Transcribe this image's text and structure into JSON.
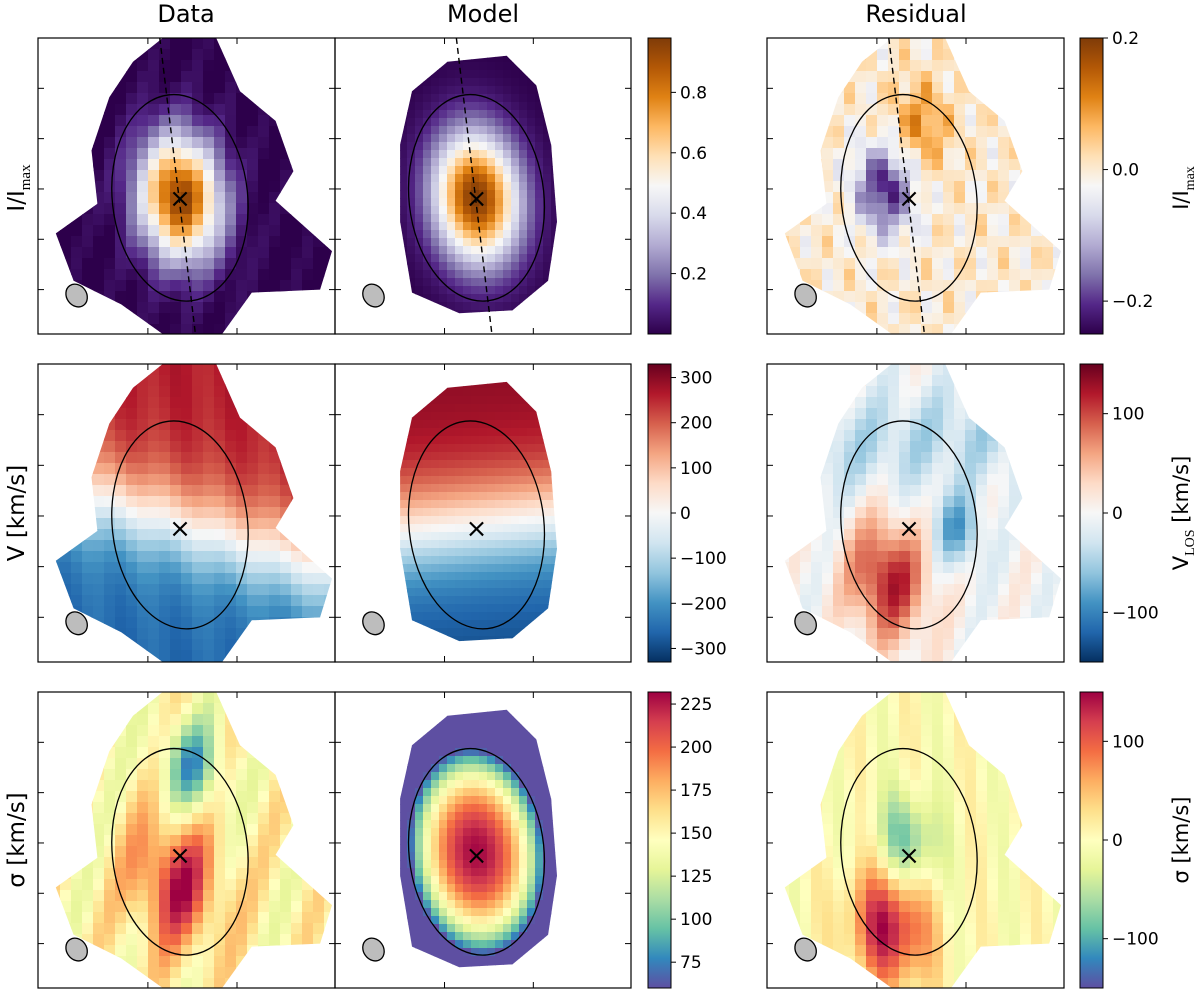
{
  "chart_data": {
    "type": "heatmap",
    "figure_kind": "3x3 map grid (Data / Model / Residual) with colorbars",
    "columns": [
      "Data",
      "Model",
      "Residual"
    ],
    "rows": [
      {
        "id": "intensity",
        "ylabel_main": "I/I",
        "ylabel_sub": "max",
        "colorbar_main": {
          "colormap": "PuOr_r",
          "range": [
            0.0,
            0.98
          ],
          "ticks": [
            "0.2",
            "0.4",
            "0.6",
            "0.8"
          ],
          "tick_values": [
            0.2,
            0.4,
            0.6,
            0.8
          ],
          "stops": [
            "#2d004b",
            "#542788",
            "#8073ac",
            "#b2abd2",
            "#d8daeb",
            "#f7f7f7",
            "#fee0b6",
            "#fdb863",
            "#e08214",
            "#b35806",
            "#7f3b08"
          ]
        },
        "colorbar_residual": {
          "colormap": "PuOr_r",
          "range": [
            -0.25,
            0.2
          ],
          "ticks": [
            "0.2",
            "0.0",
            "−0.2"
          ],
          "tick_values": [
            0.2,
            0.0,
            -0.2
          ],
          "label_main": "I/I",
          "label_sub": "max",
          "stops": [
            "#2d004b",
            "#542788",
            "#8073ac",
            "#b2abd2",
            "#d8daeb",
            "#f7f7f7",
            "#fee0b6",
            "#fdb863",
            "#e08214",
            "#b35806",
            "#7f3b08"
          ]
        },
        "kinematic_axis_shown": true
      },
      {
        "id": "velocity",
        "ylabel_main": "V [km/s]",
        "ylabel_sub": "",
        "colorbar_main": {
          "colormap": "RdBu_r",
          "range": [
            -330,
            330
          ],
          "ticks": [
            "300",
            "200",
            "100",
            "0",
            "−100",
            "−200",
            "−300"
          ],
          "tick_values": [
            300,
            200,
            100,
            0,
            -100,
            -200,
            -300
          ],
          "stops": [
            "#053061",
            "#2166ac",
            "#4393c3",
            "#92c5de",
            "#d1e5f0",
            "#f7f7f7",
            "#fddbc7",
            "#f4a582",
            "#d6604d",
            "#b2182b",
            "#67001f"
          ]
        },
        "colorbar_residual": {
          "colormap": "RdBu_r",
          "range": [
            -150,
            150
          ],
          "ticks": [
            "100",
            "0",
            "−100"
          ],
          "tick_values": [
            100,
            0,
            -100
          ],
          "label_main": "V",
          "label_sub": "LOS",
          "label_tail": " [km/s]",
          "stops": [
            "#053061",
            "#2166ac",
            "#4393c3",
            "#92c5de",
            "#d1e5f0",
            "#f7f7f7",
            "#fddbc7",
            "#f4a582",
            "#d6604d",
            "#b2182b",
            "#67001f"
          ]
        },
        "kinematic_axis_shown": false
      },
      {
        "id": "dispersion",
        "ylabel_main": "σ [km/s]",
        "ylabel_sub": "",
        "colorbar_main": {
          "colormap": "Spectral_r",
          "range": [
            60,
            232
          ],
          "ticks": [
            "225",
            "200",
            "175",
            "150",
            "125",
            "100",
            "75"
          ],
          "tick_values": [
            225,
            200,
            175,
            150,
            125,
            100,
            75
          ],
          "stops": [
            "#5e4fa2",
            "#3288bd",
            "#66c2a5",
            "#abdda4",
            "#e6f598",
            "#ffffbf",
            "#fee08b",
            "#fdae61",
            "#f46d43",
            "#d53e4f",
            "#9e0142"
          ]
        },
        "colorbar_residual": {
          "colormap": "Spectral_r",
          "range": [
            -150,
            150
          ],
          "ticks": [
            "100",
            "0",
            "−100"
          ],
          "tick_values": [
            100,
            0,
            -100
          ],
          "label_main": "σ [km/s]",
          "label_sub": "",
          "stops": [
            "#5e4fa2",
            "#3288bd",
            "#66c2a5",
            "#abdda4",
            "#e6f598",
            "#ffffbf",
            "#fee08b",
            "#fdae61",
            "#f46d43",
            "#d53e4f",
            "#9e0142"
          ]
        },
        "kinematic_axis_shown": false
      }
    ],
    "annotations": {
      "center_marker": "×",
      "ellipse": "black outline ellipse marking the fitted disk",
      "beam": "grey filled ellipse (PSF beam) in lower-left corner",
      "kinematic_axis": "dashed line (top row only)"
    }
  }
}
